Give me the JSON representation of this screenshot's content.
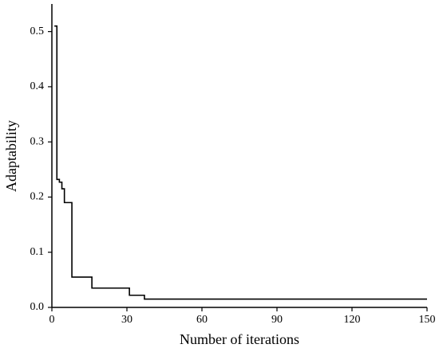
{
  "chart_data": {
    "type": "line",
    "step": "post",
    "x_label": "Number of iterations",
    "y_label": "Adaptability",
    "x": [
      1,
      2,
      3,
      4,
      5,
      8,
      16,
      31,
      37,
      150
    ],
    "series": [
      {
        "color": "#000000",
        "values": [
          0.51,
          0.232,
          0.227,
          0.215,
          0.19,
          0.055,
          0.035,
          0.022,
          0.015,
          0.015
        ]
      }
    ],
    "xlim": [
      0,
      150
    ],
    "xticks": [
      0,
      30,
      60,
      90,
      120,
      150
    ],
    "ylim": [
      0,
      0.55
    ],
    "yticks": [
      {
        "value": 0,
        "label": "0.0"
      },
      0.1,
      0.2,
      0.3,
      0.4,
      0.5
    ]
  }
}
